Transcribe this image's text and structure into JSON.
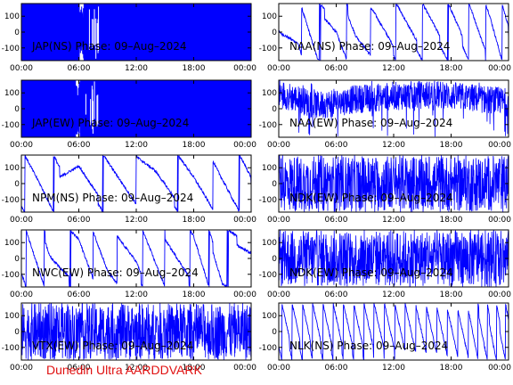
{
  "footer": "Dunedin Ultra AARDDVARK",
  "colors": {
    "trace": "#0000ff",
    "footer": "#e01010",
    "axes": "#000000"
  },
  "xticks": [
    "00:00",
    "06:00",
    "12:00",
    "18:00",
    "00:00"
  ],
  "yticks": [
    "100",
    "0",
    "-100"
  ],
  "chart_data": [
    {
      "type": "line",
      "title": "JAP(NS) Phase: 09–Aug–2024",
      "xlim": [
        0,
        24
      ],
      "ylim": [
        -180,
        180
      ],
      "style": "saturated-after",
      "param": 6.0,
      "series": [
        {
          "x": [
            0,
            1,
            2,
            3,
            4,
            5,
            5.5,
            6
          ],
          "y": [
            null,
            null,
            null,
            null,
            null,
            -150,
            -60,
            120
          ]
        }
      ]
    },
    {
      "type": "line",
      "title": "NAA(NS) Phase: 09–Aug–2024",
      "xlim": [
        0,
        24
      ],
      "ylim": [
        -180,
        180
      ],
      "style": "sawtooth",
      "param": 2.4,
      "series": [
        {
          "x": [
            0,
            2,
            4,
            6,
            8,
            10,
            12,
            14,
            16,
            18,
            20,
            22,
            24
          ],
          "y": [
            -120,
            60,
            -80,
            30,
            -40,
            50,
            90,
            120,
            150,
            170,
            140,
            40,
            -150
          ]
        }
      ]
    },
    {
      "type": "line",
      "title": "JAP(EW) Phase: 09–Aug–2024",
      "xlim": [
        0,
        24
      ],
      "ylim": [
        -180,
        180
      ],
      "style": "saturated-after",
      "param": 5.6,
      "series": [
        {
          "x": [
            0,
            1,
            2,
            3,
            4,
            5,
            5.5
          ],
          "y": [
            null,
            null,
            null,
            null,
            null,
            -100,
            80
          ]
        }
      ]
    },
    {
      "type": "line",
      "title": "NAA(EW) Phase: 09–Aug–2024",
      "xlim": [
        0,
        24
      ],
      "ylim": [
        -180,
        180
      ],
      "style": "noisy",
      "param": 0.5,
      "series": [
        {
          "x": [
            0,
            4,
            8,
            12,
            16,
            20,
            24
          ],
          "y": [
            100,
            20,
            60,
            80,
            90,
            70,
            40
          ]
        }
      ]
    },
    {
      "type": "line",
      "title": "NPM(NS) Phase: 09–Aug–2024",
      "xlim": [
        0,
        24
      ],
      "ylim": [
        -180,
        180
      ],
      "style": "sawtooth",
      "param": 4.0,
      "series": [
        {
          "x": [
            0,
            2,
            4,
            6,
            8,
            10,
            12,
            14,
            16,
            18,
            20,
            22,
            24
          ],
          "y": [
            100,
            20,
            -80,
            140,
            110,
            80,
            50,
            110,
            90,
            70,
            20,
            -60,
            -140
          ]
        }
      ]
    },
    {
      "type": "line",
      "title": "NDK(EW) Phase: 09–Aug–2024",
      "xlim": [
        0,
        24
      ],
      "ylim": [
        -180,
        180
      ],
      "style": "noisy",
      "param": 1.0,
      "series": [
        {
          "x": [
            0,
            6,
            12,
            18,
            24
          ],
          "y": [
            0,
            0,
            0,
            0,
            0
          ]
        }
      ]
    },
    {
      "type": "line",
      "title": "NWC(EW) Phase: 09–Aug–2024",
      "xlim": [
        0,
        24
      ],
      "ylim": [
        -180,
        180
      ],
      "style": "sawtooth",
      "param": 2.5,
      "series": [
        {
          "x": [
            0,
            3,
            6,
            9,
            12,
            15,
            18,
            21,
            24
          ],
          "y": [
            150,
            -50,
            120,
            -20,
            100,
            0,
            80,
            -160,
            90
          ]
        }
      ]
    },
    {
      "type": "line",
      "title": "NDK(EW) Phase: 09–Aug–2024",
      "xlim": [
        0,
        24
      ],
      "ylim": [
        -180,
        180
      ],
      "style": "noisy",
      "param": 1.0,
      "series": [
        {
          "x": [
            0,
            6,
            12,
            18,
            24
          ],
          "y": [
            0,
            0,
            0,
            0,
            0
          ]
        }
      ]
    },
    {
      "type": "line",
      "title": "VTX(EW) Phase: 09–Aug–2024",
      "xlim": [
        0,
        24
      ],
      "ylim": [
        -180,
        180
      ],
      "style": "noisy",
      "param": 1.0,
      "series": [
        {
          "x": [
            0,
            6,
            12,
            18,
            24
          ],
          "y": [
            0,
            0,
            0,
            0,
            0
          ]
        }
      ]
    },
    {
      "type": "line",
      "title": "NLK(NS) Phase: 09–Aug–2024",
      "xlim": [
        0,
        24
      ],
      "ylim": [
        -180,
        180
      ],
      "style": "sawtooth",
      "param": 1.1,
      "series": [
        {
          "x": [
            0,
            4,
            8,
            12,
            16,
            20,
            24
          ],
          "y": [
            150,
            120,
            90,
            60,
            40,
            10,
            -160
          ]
        }
      ]
    }
  ]
}
